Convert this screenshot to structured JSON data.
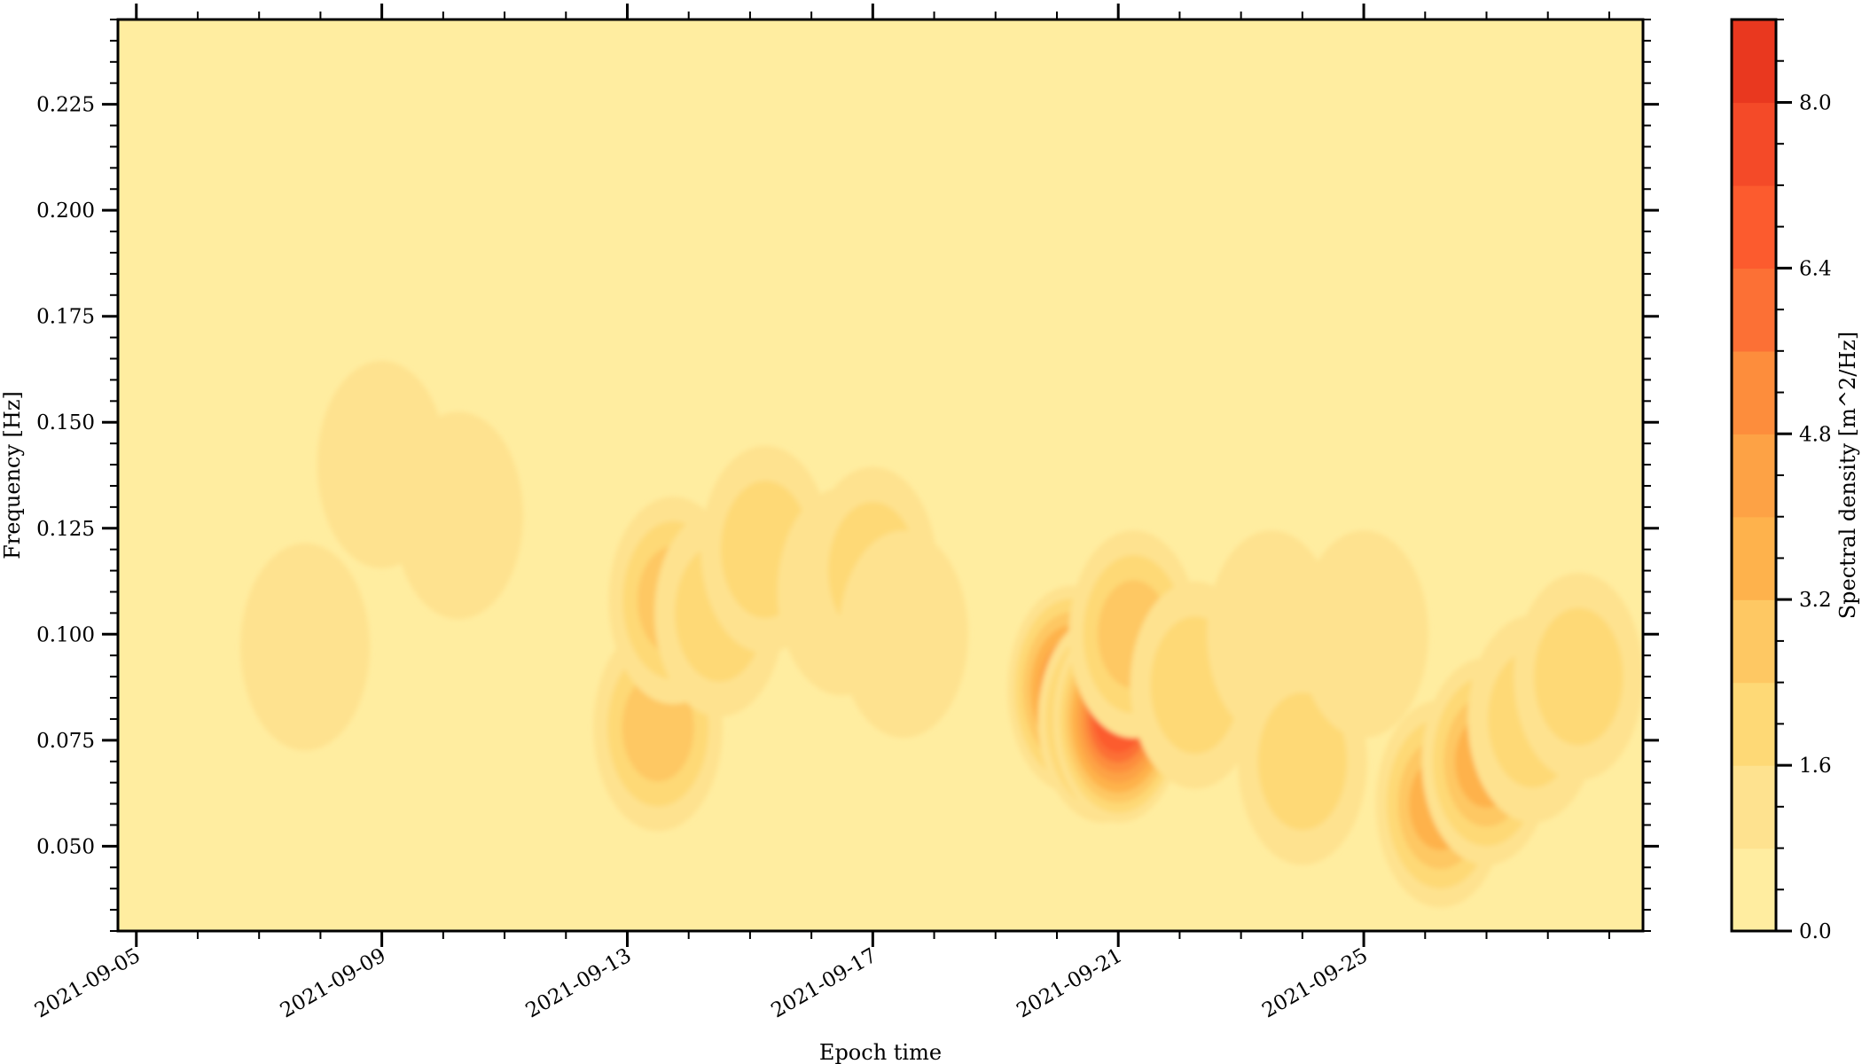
{
  "chart_data": {
    "type": "heatmap",
    "subtype": "filled-contour spectrogram",
    "title": "",
    "xlabel": "Epoch time",
    "ylabel": "Frequency [Hz]",
    "x_range": [
      "2021-09-04",
      "2021-09-29"
    ],
    "y_range": [
      0.03,
      0.245
    ],
    "x_ticks": [
      "2021-09-05",
      "2021-09-09",
      "2021-09-13",
      "2021-09-17",
      "2021-09-21",
      "2021-09-25"
    ],
    "y_ticks": [
      "0.050",
      "0.075",
      "0.100",
      "0.125",
      "0.150",
      "0.175",
      "0.200",
      "0.225"
    ],
    "grid": false,
    "colorbar": {
      "label": "Spectral density [m^2/Hz]",
      "range": [
        0.0,
        8.8
      ],
      "ticks": [
        "0.0",
        "1.6",
        "3.2",
        "4.8",
        "6.4",
        "8.0"
      ],
      "levels": [
        0.0,
        0.8,
        1.6,
        2.4,
        3.2,
        4.0,
        4.8,
        5.6,
        6.4,
        7.2,
        8.0,
        8.8
      ],
      "colors": [
        "#ffeda0",
        "#fee28f",
        "#fed976",
        "#fec863",
        "#feb24c",
        "#fda245",
        "#fd8d3c",
        "#fc7035",
        "#fc5b2e",
        "#f44a28",
        "#e9381f"
      ]
    },
    "peaks": [
      {
        "time": "2021-09-07 18:00",
        "freq": 0.097,
        "value": 0.8
      },
      {
        "time": "2021-09-08 12:00",
        "freq": 0.105,
        "value": 0.6
      },
      {
        "time": "2021-09-09 00:00",
        "freq": 0.14,
        "value": 1.0
      },
      {
        "time": "2021-09-10 06:00",
        "freq": 0.128,
        "value": 0.8
      },
      {
        "time": "2021-09-11 18:00",
        "freq": 0.14,
        "value": 0.6
      },
      {
        "time": "2021-09-13 12:00",
        "freq": 0.078,
        "value": 2.8
      },
      {
        "time": "2021-09-13 18:00",
        "freq": 0.108,
        "value": 2.6
      },
      {
        "time": "2021-09-14 12:00",
        "freq": 0.105,
        "value": 2.2
      },
      {
        "time": "2021-09-15 06:00",
        "freq": 0.12,
        "value": 1.6
      },
      {
        "time": "2021-09-16 12:00",
        "freq": 0.11,
        "value": 1.4
      },
      {
        "time": "2021-09-17 00:00",
        "freq": 0.115,
        "value": 1.8
      },
      {
        "time": "2021-09-17 12:00",
        "freq": 0.1,
        "value": 1.2
      },
      {
        "time": "2021-09-20 06:00",
        "freq": 0.087,
        "value": 5.2
      },
      {
        "time": "2021-09-20 18:00",
        "freq": 0.08,
        "value": 5.6
      },
      {
        "time": "2021-09-21 00:00",
        "freq": 0.08,
        "value": 6.4
      },
      {
        "time": "2021-09-21 06:00",
        "freq": 0.1,
        "value": 3.0
      },
      {
        "time": "2021-09-22 06:00",
        "freq": 0.088,
        "value": 2.2
      },
      {
        "time": "2021-09-23 12:00",
        "freq": 0.1,
        "value": 1.2
      },
      {
        "time": "2021-09-24 00:00",
        "freq": 0.07,
        "value": 2.0
      },
      {
        "time": "2021-09-25 00:00",
        "freq": 0.1,
        "value": 1.0
      },
      {
        "time": "2021-09-26 06:00",
        "freq": 0.06,
        "value": 3.8
      },
      {
        "time": "2021-09-27 00:00",
        "freq": 0.07,
        "value": 3.6
      },
      {
        "time": "2021-09-27 18:00",
        "freq": 0.08,
        "value": 2.4
      },
      {
        "time": "2021-09-28 12:00",
        "freq": 0.09,
        "value": 1.6
      }
    ]
  }
}
